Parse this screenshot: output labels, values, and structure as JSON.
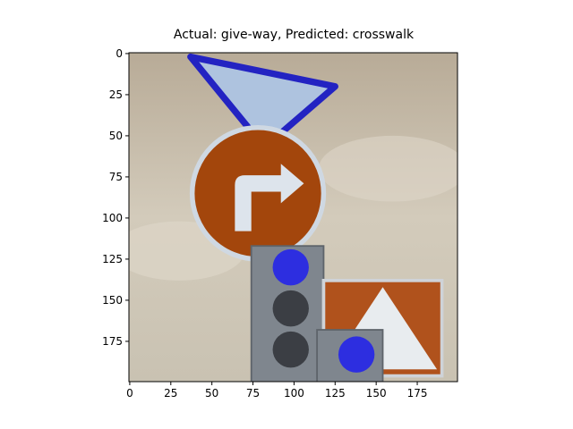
{
  "chart_data": {
    "type": "image",
    "title": "Actual: give-way, Predicted: crosswalk",
    "xlim": [
      -0.5,
      199.5
    ],
    "ylim": [
      199.5,
      -0.5
    ],
    "xticks": [
      0,
      25,
      50,
      75,
      100,
      125,
      150,
      175
    ],
    "yticks": [
      0,
      25,
      50,
      75,
      100,
      125,
      150,
      175
    ]
  }
}
